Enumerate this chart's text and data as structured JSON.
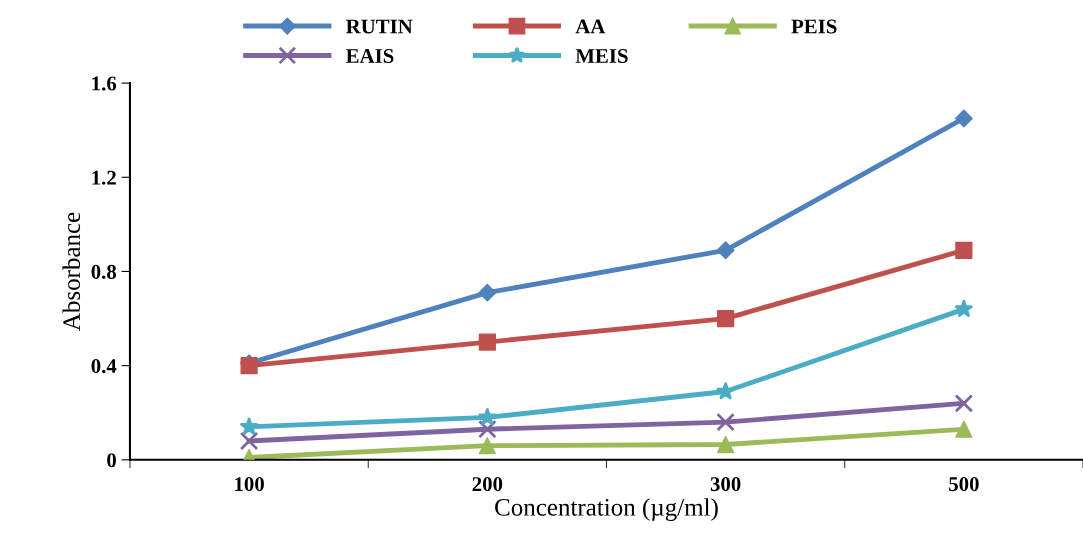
{
  "chart_data": {
    "type": "line",
    "xlabel": "Concentration (µg/ml)",
    "ylabel": "Absorbance",
    "categories": [
      "100",
      "200",
      "300",
      "500"
    ],
    "series": [
      {
        "name": "RUTIN",
        "color": "#4f81bd",
        "marker": "diamond",
        "values": [
          0.41,
          0.71,
          0.89,
          1.45
        ]
      },
      {
        "name": "AA",
        "color": "#c0504d",
        "marker": "square",
        "values": [
          0.4,
          0.5,
          0.6,
          0.89
        ]
      },
      {
        "name": "PEIS",
        "color": "#9bbb59",
        "marker": "triangle",
        "values": [
          0.01,
          0.06,
          0.065,
          0.13
        ]
      },
      {
        "name": "EAIS",
        "color": "#8064a2",
        "marker": "cross",
        "values": [
          0.08,
          0.13,
          0.16,
          0.24
        ]
      },
      {
        "name": "MEIS",
        "color": "#4bacc6",
        "marker": "star",
        "values": [
          0.14,
          0.18,
          0.29,
          0.64
        ]
      }
    ],
    "ylim": [
      0,
      1.6
    ],
    "yticks": [
      {
        "value": 0,
        "label": "0"
      },
      0.4,
      0.8,
      1.2,
      1.6
    ],
    "grid": false,
    "legend": "top",
    "line_style": "solid"
  }
}
